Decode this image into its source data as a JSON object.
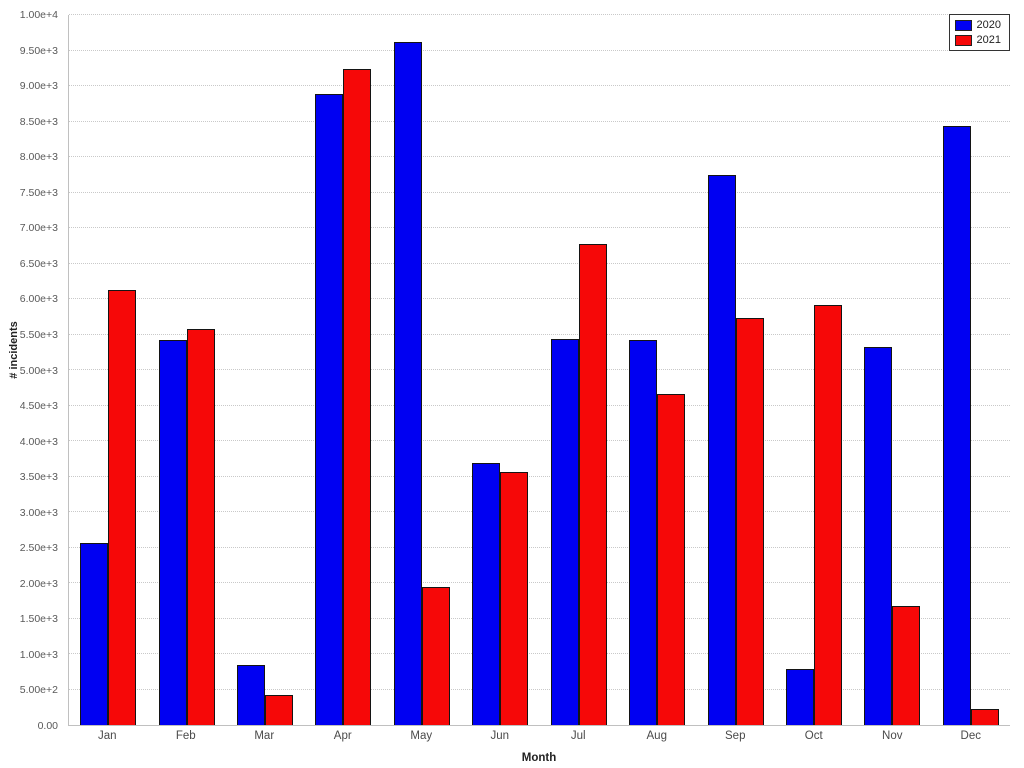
{
  "chart_data": {
    "type": "bar",
    "title": "",
    "xlabel": "Month",
    "ylabel": "# incidents",
    "categories": [
      "Jan",
      "Feb",
      "Mar",
      "Apr",
      "May",
      "Jun",
      "Jul",
      "Aug",
      "Sep",
      "Oct",
      "Nov",
      "Dec"
    ],
    "series": [
      {
        "name": "2020",
        "color": "#0000f2",
        "values": [
          2570,
          5420,
          840,
          8890,
          9620,
          3690,
          5440,
          5420,
          7750,
          790,
          5330,
          8440
        ]
      },
      {
        "name": "2021",
        "color": "#f60808",
        "values": [
          6130,
          5580,
          420,
          9240,
          1940,
          3560,
          6770,
          4660,
          5730,
          5910,
          1670,
          220
        ]
      }
    ],
    "ylim": [
      0,
      10000
    ],
    "ytick_step": 500,
    "ytick_labels": [
      "0.00",
      "5.00e+2",
      "1.00e+3",
      "1.50e+3",
      "2.00e+3",
      "2.50e+3",
      "3.00e+3",
      "3.50e+3",
      "4.00e+3",
      "4.50e+3",
      "5.00e+3",
      "5.50e+3",
      "6.00e+3",
      "6.50e+3",
      "7.00e+3",
      "7.50e+3",
      "8.00e+3",
      "8.50e+3",
      "9.00e+3",
      "9.50e+3",
      "1.00e+4"
    ],
    "grid": "dotted horizontal",
    "legend_position": "top-right"
  }
}
